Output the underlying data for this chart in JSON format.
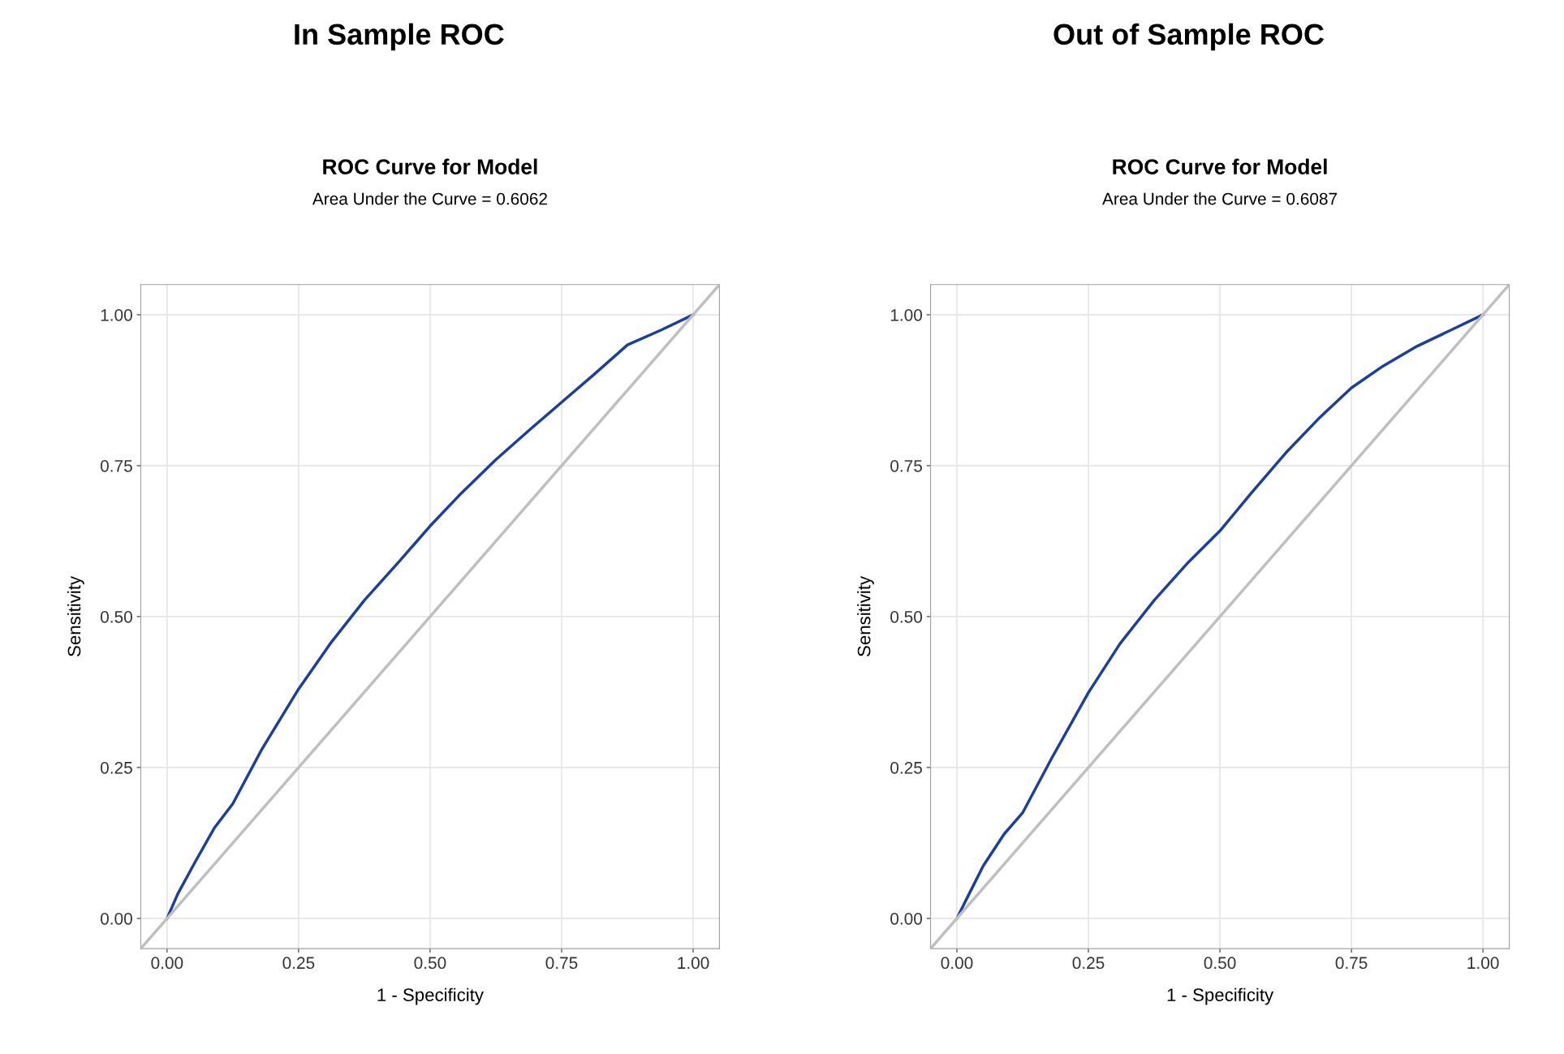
{
  "chart_data": [
    {
      "type": "line",
      "title": "In Sample ROC",
      "subtitle": "ROC Curve for Model",
      "annotations": [
        "Area Under the Curve = 0.6062"
      ],
      "xlabel": "1 - Specificity",
      "ylabel": "Sensitivity",
      "series": [
        {
          "color": "#1c3f9e",
          "x": [
            0,
            0.02,
            0.053,
            0.09,
            0.125,
            0.18,
            0.25,
            0.31,
            0.375,
            0.44,
            0.5,
            0.56,
            0.625,
            0.69,
            0.75,
            0.81,
            0.875,
            0.94,
            1.0
          ],
          "values": [
            0,
            0.04,
            0.093,
            0.15,
            0.19,
            0.28,
            0.38,
            0.455,
            0.527,
            0.59,
            0.65,
            0.705,
            0.76,
            0.81,
            0.855,
            0.9,
            0.95,
            0.975,
            1.0
          ]
        },
        {
          "color": "#bfbfbf",
          "x": [
            -0.05,
            1.05
          ],
          "values": [
            -0.05,
            1.05
          ]
        }
      ],
      "xlim": [
        -0.05,
        1.05
      ],
      "ylim": [
        -0.05,
        1.05
      ],
      "xticks": [
        {
          "value": 0,
          "label": "0.00"
        },
        {
          "value": 0.25,
          "label": "0.25"
        },
        {
          "value": 0.5,
          "label": "0.50"
        },
        {
          "value": 0.75,
          "label": "0.75"
        },
        {
          "value": 1,
          "label": "1.00"
        }
      ],
      "yticks": [
        {
          "value": 0,
          "label": "0.00"
        },
        {
          "value": 0.25,
          "label": "0.25"
        },
        {
          "value": 0.5,
          "label": "0.50"
        },
        {
          "value": 0.75,
          "label": "0.75"
        },
        {
          "value": 1,
          "label": "1.00"
        }
      ],
      "grid": true
    },
    {
      "type": "line",
      "title": "Out of Sample ROC",
      "subtitle": "ROC Curve for Model",
      "annotations": [
        "Area Under the Curve = 0.6087"
      ],
      "xlabel": "1 - Specificity",
      "ylabel": "Sensitivity",
      "series": [
        {
          "color": "#1c3f9e",
          "x": [
            0,
            0.02,
            0.05,
            0.09,
            0.125,
            0.18,
            0.25,
            0.31,
            0.375,
            0.44,
            0.5,
            0.56,
            0.625,
            0.69,
            0.75,
            0.81,
            0.875,
            0.94,
            1.0
          ],
          "values": [
            0,
            0.035,
            0.087,
            0.14,
            0.175,
            0.265,
            0.374,
            0.455,
            0.527,
            0.59,
            0.642,
            0.705,
            0.771,
            0.83,
            0.879,
            0.915,
            0.948,
            0.975,
            1.0
          ]
        },
        {
          "color": "#bfbfbf",
          "x": [
            -0.05,
            1.05
          ],
          "values": [
            -0.05,
            1.05
          ]
        }
      ],
      "xlim": [
        -0.05,
        1.05
      ],
      "ylim": [
        -0.05,
        1.05
      ],
      "xticks": [
        {
          "value": 0,
          "label": "0.00"
        },
        {
          "value": 0.25,
          "label": "0.25"
        },
        {
          "value": 0.5,
          "label": "0.50"
        },
        {
          "value": 0.75,
          "label": "0.75"
        },
        {
          "value": 1,
          "label": "1.00"
        }
      ],
      "yticks": [
        {
          "value": 0,
          "label": "0.00"
        },
        {
          "value": 0.25,
          "label": "0.25"
        },
        {
          "value": 0.5,
          "label": "0.50"
        },
        {
          "value": 0.75,
          "label": "0.75"
        },
        {
          "value": 1,
          "label": "1.00"
        }
      ],
      "grid": true
    }
  ]
}
